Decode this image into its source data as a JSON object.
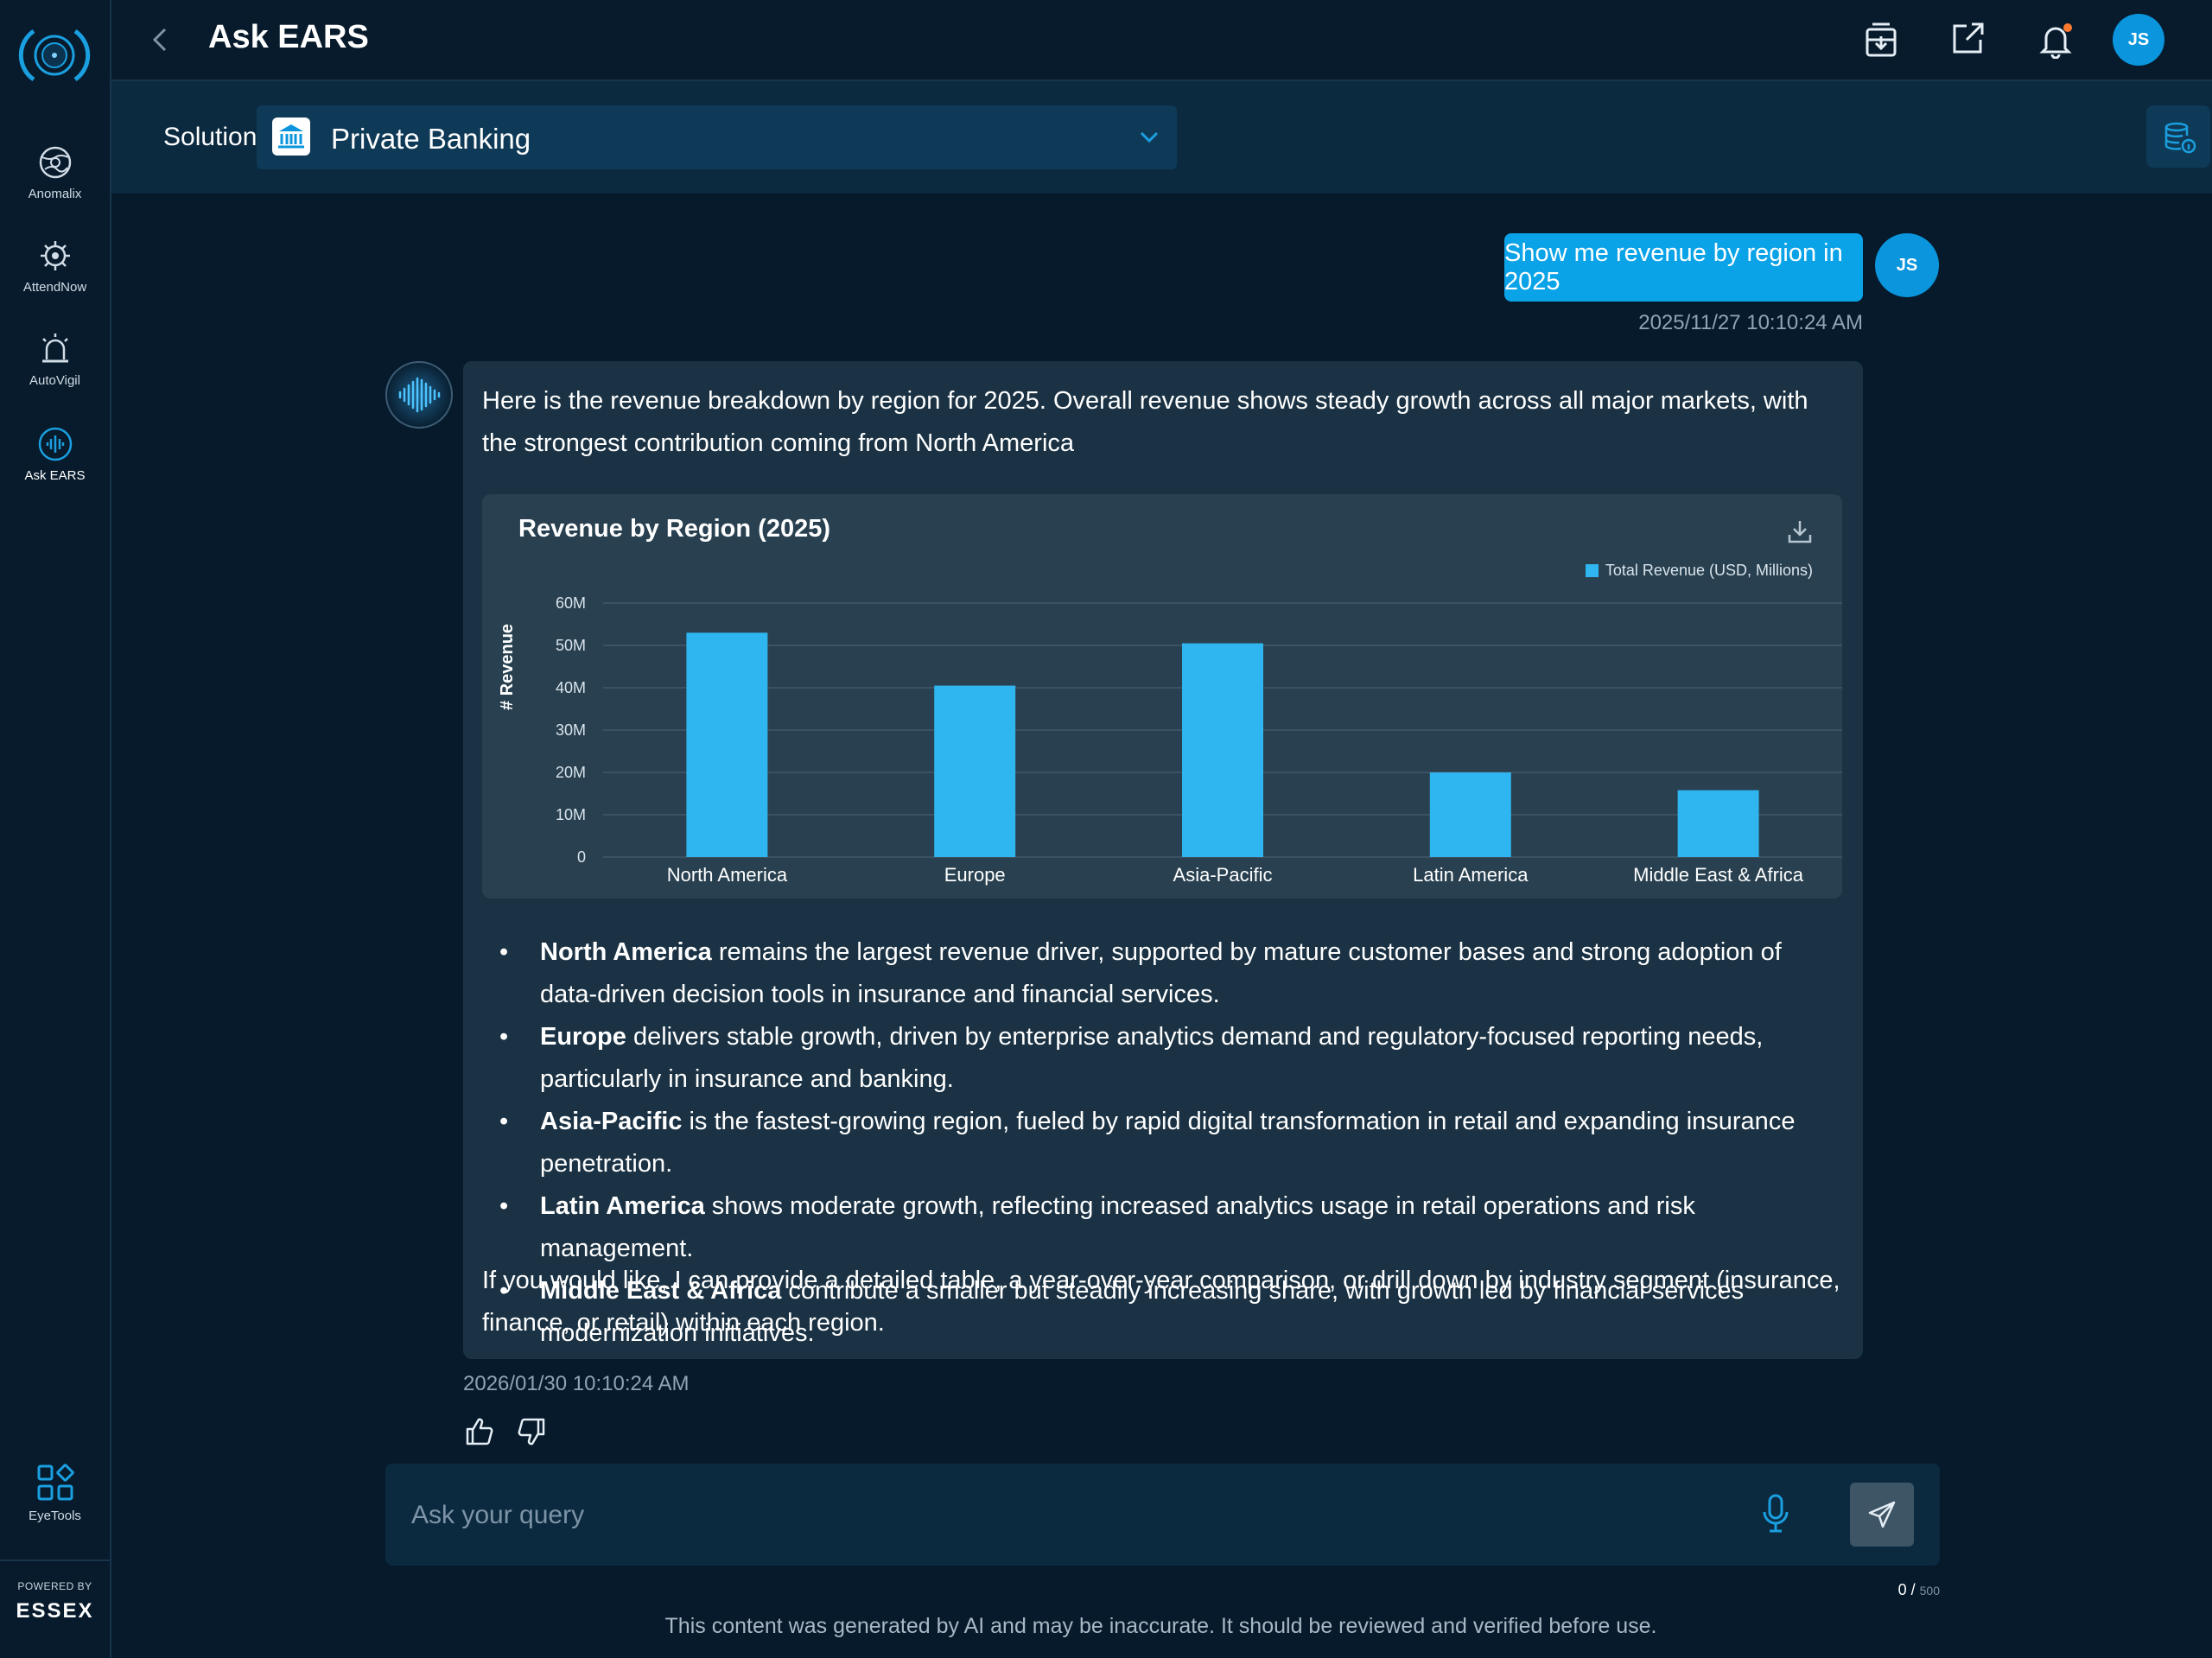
{
  "sidebar": {
    "items": [
      {
        "label": "Anomalix",
        "icon": "globe-icon"
      },
      {
        "label": "AttendNow",
        "icon": "gear-eye-icon"
      },
      {
        "label": "AutoVigil",
        "icon": "alarm-icon"
      },
      {
        "label": "Ask EARS",
        "icon": "sound-wave-icon"
      }
    ],
    "tools_label": "EyeTools",
    "powered_by": "POWERED BY",
    "brand": "ESSEX"
  },
  "header": {
    "title": "Ask EARS",
    "avatar_initials": "JS"
  },
  "solution": {
    "label": "Solution",
    "value": "Private Banking"
  },
  "chat": {
    "user_message": "Show me revenue by region in 2025",
    "user_initials": "JS",
    "user_timestamp": "2025/11/27 10:10:24 AM",
    "ai_intro": "Here is the revenue breakdown by region for 2025. Overall revenue shows steady growth across all major markets, with the strongest contribution coming from North America",
    "bullets": [
      {
        "region": "North America",
        "text": " remains the largest revenue driver, supported by mature customer bases and strong adoption of data-driven decision tools in insurance and financial services."
      },
      {
        "region": "Europe",
        "text": " delivers stable growth, driven by enterprise analytics demand and regulatory-focused reporting needs, particularly in insurance and banking."
      },
      {
        "region": "Asia-Pacific",
        "text": " is the fastest-growing region, fueled by rapid digital transformation in retail and expanding insurance penetration."
      },
      {
        "region": "Latin America",
        "text": " shows moderate growth, reflecting increased analytics usage in retail operations and risk management."
      },
      {
        "region": "Middle East & Africa",
        "text": " contribute a smaller but steadily increasing share, with growth led by financial services modernization initiatives."
      }
    ],
    "ai_followup": "If you would like, I can provide a detailed table, a year-over-year comparison, or drill down by industry segment (insurance, finance, or retail) within each region.",
    "ai_timestamp": "2026/01/30 10:10:24 AM"
  },
  "input": {
    "placeholder": "Ask your query",
    "count": "0",
    "max": "500"
  },
  "disclaimer": "This content was generated by AI and may be inaccurate. It should be reviewed and verified before use.",
  "colors": {
    "accent": "#0aa3e8",
    "bar": "#2fb5ef",
    "background": "#061a2b",
    "card": "#1a3244",
    "chart_panel": "#28404f"
  },
  "chart_data": {
    "type": "bar",
    "title": "Revenue by Region (2025)",
    "ylabel": "# Revenue",
    "xlabel": "",
    "categories": [
      "North America",
      "Europe",
      "Asia-Pacific",
      "Latin America",
      "Middle East & Africa"
    ],
    "series": [
      {
        "name": "Total Revenue (USD, Millions)",
        "values": [
          53,
          40.5,
          50.5,
          20,
          15.8
        ]
      }
    ],
    "ylim": [
      0,
      60
    ],
    "yticks": [
      "0",
      "10M",
      "20M",
      "30M",
      "40M",
      "50M",
      "60M"
    ],
    "grid": true,
    "legend": "top-right"
  }
}
